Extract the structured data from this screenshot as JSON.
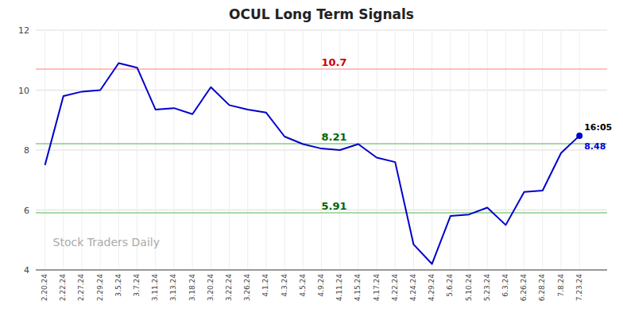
{
  "chart_data": {
    "type": "line",
    "title": "OCUL Long Term Signals",
    "categories": [
      "2.20.24",
      "2.22.24",
      "2.27.24",
      "2.29.24",
      "3.5.24",
      "3.7.24",
      "3.11.24",
      "3.13.24",
      "3.18.24",
      "3.20.24",
      "3.22.24",
      "3.26.24",
      "4.1.24",
      "4.3.24",
      "4.5.24",
      "4.9.24",
      "4.11.24",
      "4.15.24",
      "4.17.24",
      "4.22.24",
      "4.24.24",
      "4.29.24",
      "5.6.24",
      "5.10.24",
      "5.23.24",
      "6.3.24",
      "6.26.24",
      "6.28.24",
      "7.8.24",
      "7.23.24"
    ],
    "values": [
      7.5,
      9.8,
      9.95,
      10.0,
      10.9,
      10.75,
      9.35,
      9.4,
      9.2,
      10.1,
      9.5,
      9.35,
      9.25,
      8.45,
      8.2,
      8.05,
      8.0,
      8.2,
      7.75,
      7.6,
      4.85,
      4.2,
      5.8,
      5.85,
      6.08,
      5.5,
      6.6,
      6.65,
      7.9,
      8.48
    ],
    "color": "#0000cc",
    "ylim": [
      4.0,
      12.0
    ],
    "yticks": [
      4,
      6,
      8,
      10,
      12
    ],
    "grid": true,
    "annotations": [
      {
        "type": "hline",
        "label": "10.7",
        "value": 10.7,
        "color": "#cc0000",
        "line_color": "#ffaaaa"
      },
      {
        "type": "hline",
        "label": "8.21",
        "value": 8.21,
        "color": "#006600",
        "line_color": "#88cc88"
      },
      {
        "type": "hline",
        "label": "5.91",
        "value": 5.91,
        "color": "#006600",
        "line_color": "#88cc88"
      },
      {
        "type": "last_time",
        "label": "16:05",
        "color": "#000000"
      },
      {
        "type": "last_price",
        "label": "8.48",
        "value": 8.48,
        "color": "#0000cc"
      },
      {
        "type": "watermark",
        "label": "Stock Traders Daily",
        "color": "#aaaaaa"
      }
    ]
  }
}
